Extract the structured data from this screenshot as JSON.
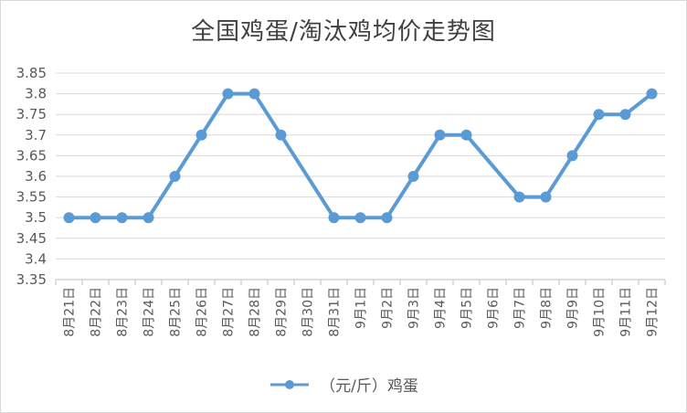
{
  "chart_data": {
    "type": "line",
    "title": "全国鸡蛋/淘汰鸡均价走势图",
    "categories": [
      "8月21日",
      "8月22日",
      "8月23日",
      "8月24日",
      "8月25日",
      "8月26日",
      "8月27日",
      "8月28日",
      "8月29日",
      "8月30日",
      "8月31日",
      "9月1日",
      "9月2日",
      "9月3日",
      "9月4日",
      "9月5日",
      "9月6日",
      "9月7日",
      "9月8日",
      "9月9日",
      "9月10日",
      "9月11日",
      "9月12日"
    ],
    "series": [
      {
        "name": "（元/斤）鸡蛋",
        "values": [
          3.5,
          3.5,
          3.5,
          3.5,
          3.6,
          3.7,
          3.8,
          3.8,
          3.7,
          null,
          3.5,
          3.5,
          3.5,
          3.6,
          3.7,
          3.7,
          null,
          3.55,
          3.55,
          3.65,
          3.75,
          3.75,
          3.8
        ],
        "color": "#5b9bd5"
      }
    ],
    "ylim": [
      3.35,
      3.85
    ],
    "yticks": [
      "3.35",
      "3.4",
      "3.45",
      "3.5",
      "3.55",
      "3.6",
      "3.65",
      "3.7",
      "3.75",
      "3.8",
      "3.85"
    ],
    "grid": true,
    "legend": "bottom"
  }
}
